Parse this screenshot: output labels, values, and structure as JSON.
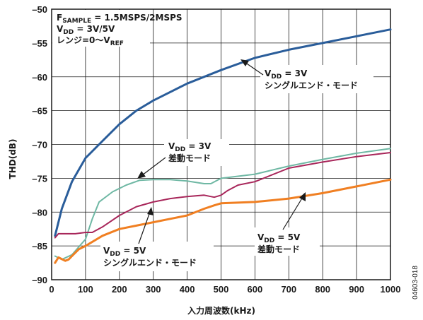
{
  "chart_data": {
    "type": "line",
    "xlabel": "入力周波数(kHz)",
    "ylabel": "THD(dB)",
    "xlim": [
      0,
      1000
    ],
    "ylim": [
      -90,
      -50
    ],
    "x_ticks": [
      "0",
      "100",
      "200",
      "300",
      "400",
      "500",
      "600",
      "700",
      "800",
      "900",
      "1000"
    ],
    "y_ticks": [
      "–50",
      "–55",
      "–60",
      "–65",
      "–70",
      "–75",
      "–80",
      "–85",
      "–90"
    ],
    "grid": true,
    "figure_id": "04603-018",
    "conditions": {
      "line1_main": "F",
      "line1_sub": "SAMPLE",
      "line1_rest": " = 1.5MSPS/2MSPS",
      "line2_main": "V",
      "line2_sub": "DD",
      "line2_rest": " = 3V/5V",
      "line3_main": "レンジ=0〜V",
      "line3_sub": "REF"
    },
    "annotations": [
      {
        "v": "V",
        "sub": "DD",
        "val": " = 3V",
        "desc": "シングルエンド・モード"
      },
      {
        "v": "V",
        "sub": "DD",
        "val": " = 3V",
        "desc": "差動モード"
      },
      {
        "v": "V",
        "sub": "DD",
        "val": " = 5V",
        "desc": "差動モード"
      },
      {
        "v": "V",
        "sub": "DD",
        "val": " = 5V",
        "desc": "シングルエンド・モード"
      }
    ],
    "series": [
      {
        "color": "#2a5d9a",
        "x": [
          10,
          30,
          60,
          100,
          150,
          200,
          250,
          300,
          400,
          500,
          600,
          700,
          800,
          900,
          1000
        ],
        "y": [
          -83.5,
          -79.5,
          -75.5,
          -72.0,
          -69.5,
          -67.0,
          -65.0,
          -63.5,
          -61.0,
          -59.0,
          -57.2,
          -56.0,
          -55.0,
          -54.0,
          -53.0
        ]
      },
      {
        "color": "#6fb8a4",
        "x": [
          10,
          30,
          60,
          100,
          120,
          140,
          180,
          220,
          260,
          300,
          350,
          400,
          450,
          470,
          500,
          600,
          700,
          800,
          900,
          1000
        ],
        "y": [
          -86.5,
          -87.0,
          -86.3,
          -84.0,
          -81.0,
          -78.5,
          -77.0,
          -76.0,
          -75.3,
          -75.2,
          -75.2,
          -75.4,
          -75.8,
          -75.8,
          -75.0,
          -74.4,
          -73.2,
          -72.2,
          -71.3,
          -70.6
        ]
      },
      {
        "color": "#a8265a",
        "x": [
          10,
          20,
          40,
          70,
          100,
          120,
          150,
          200,
          250,
          300,
          350,
          400,
          450,
          480,
          500,
          520,
          550,
          600,
          700,
          800,
          900,
          1000
        ],
        "y": [
          -83.8,
          -83.2,
          -83.2,
          -83.2,
          -83.0,
          -83.0,
          -82.2,
          -80.5,
          -79.2,
          -78.5,
          -78.0,
          -77.7,
          -77.5,
          -77.8,
          -77.5,
          -76.8,
          -76.0,
          -75.5,
          -73.5,
          -72.6,
          -71.8,
          -71.2
        ]
      },
      {
        "color": "#f07f22",
        "x": [
          10,
          20,
          40,
          50,
          60,
          80,
          100,
          150,
          200,
          250,
          300,
          350,
          400,
          450,
          480,
          500,
          600,
          700,
          800,
          900,
          1000
        ],
        "y": [
          -87.5,
          -86.7,
          -87.2,
          -87.0,
          -86.5,
          -85.5,
          -85.0,
          -83.5,
          -82.5,
          -82.0,
          -81.5,
          -81.0,
          -80.5,
          -79.5,
          -79.0,
          -78.7,
          -78.5,
          -78.0,
          -77.2,
          -76.2,
          -75.2
        ]
      }
    ]
  }
}
